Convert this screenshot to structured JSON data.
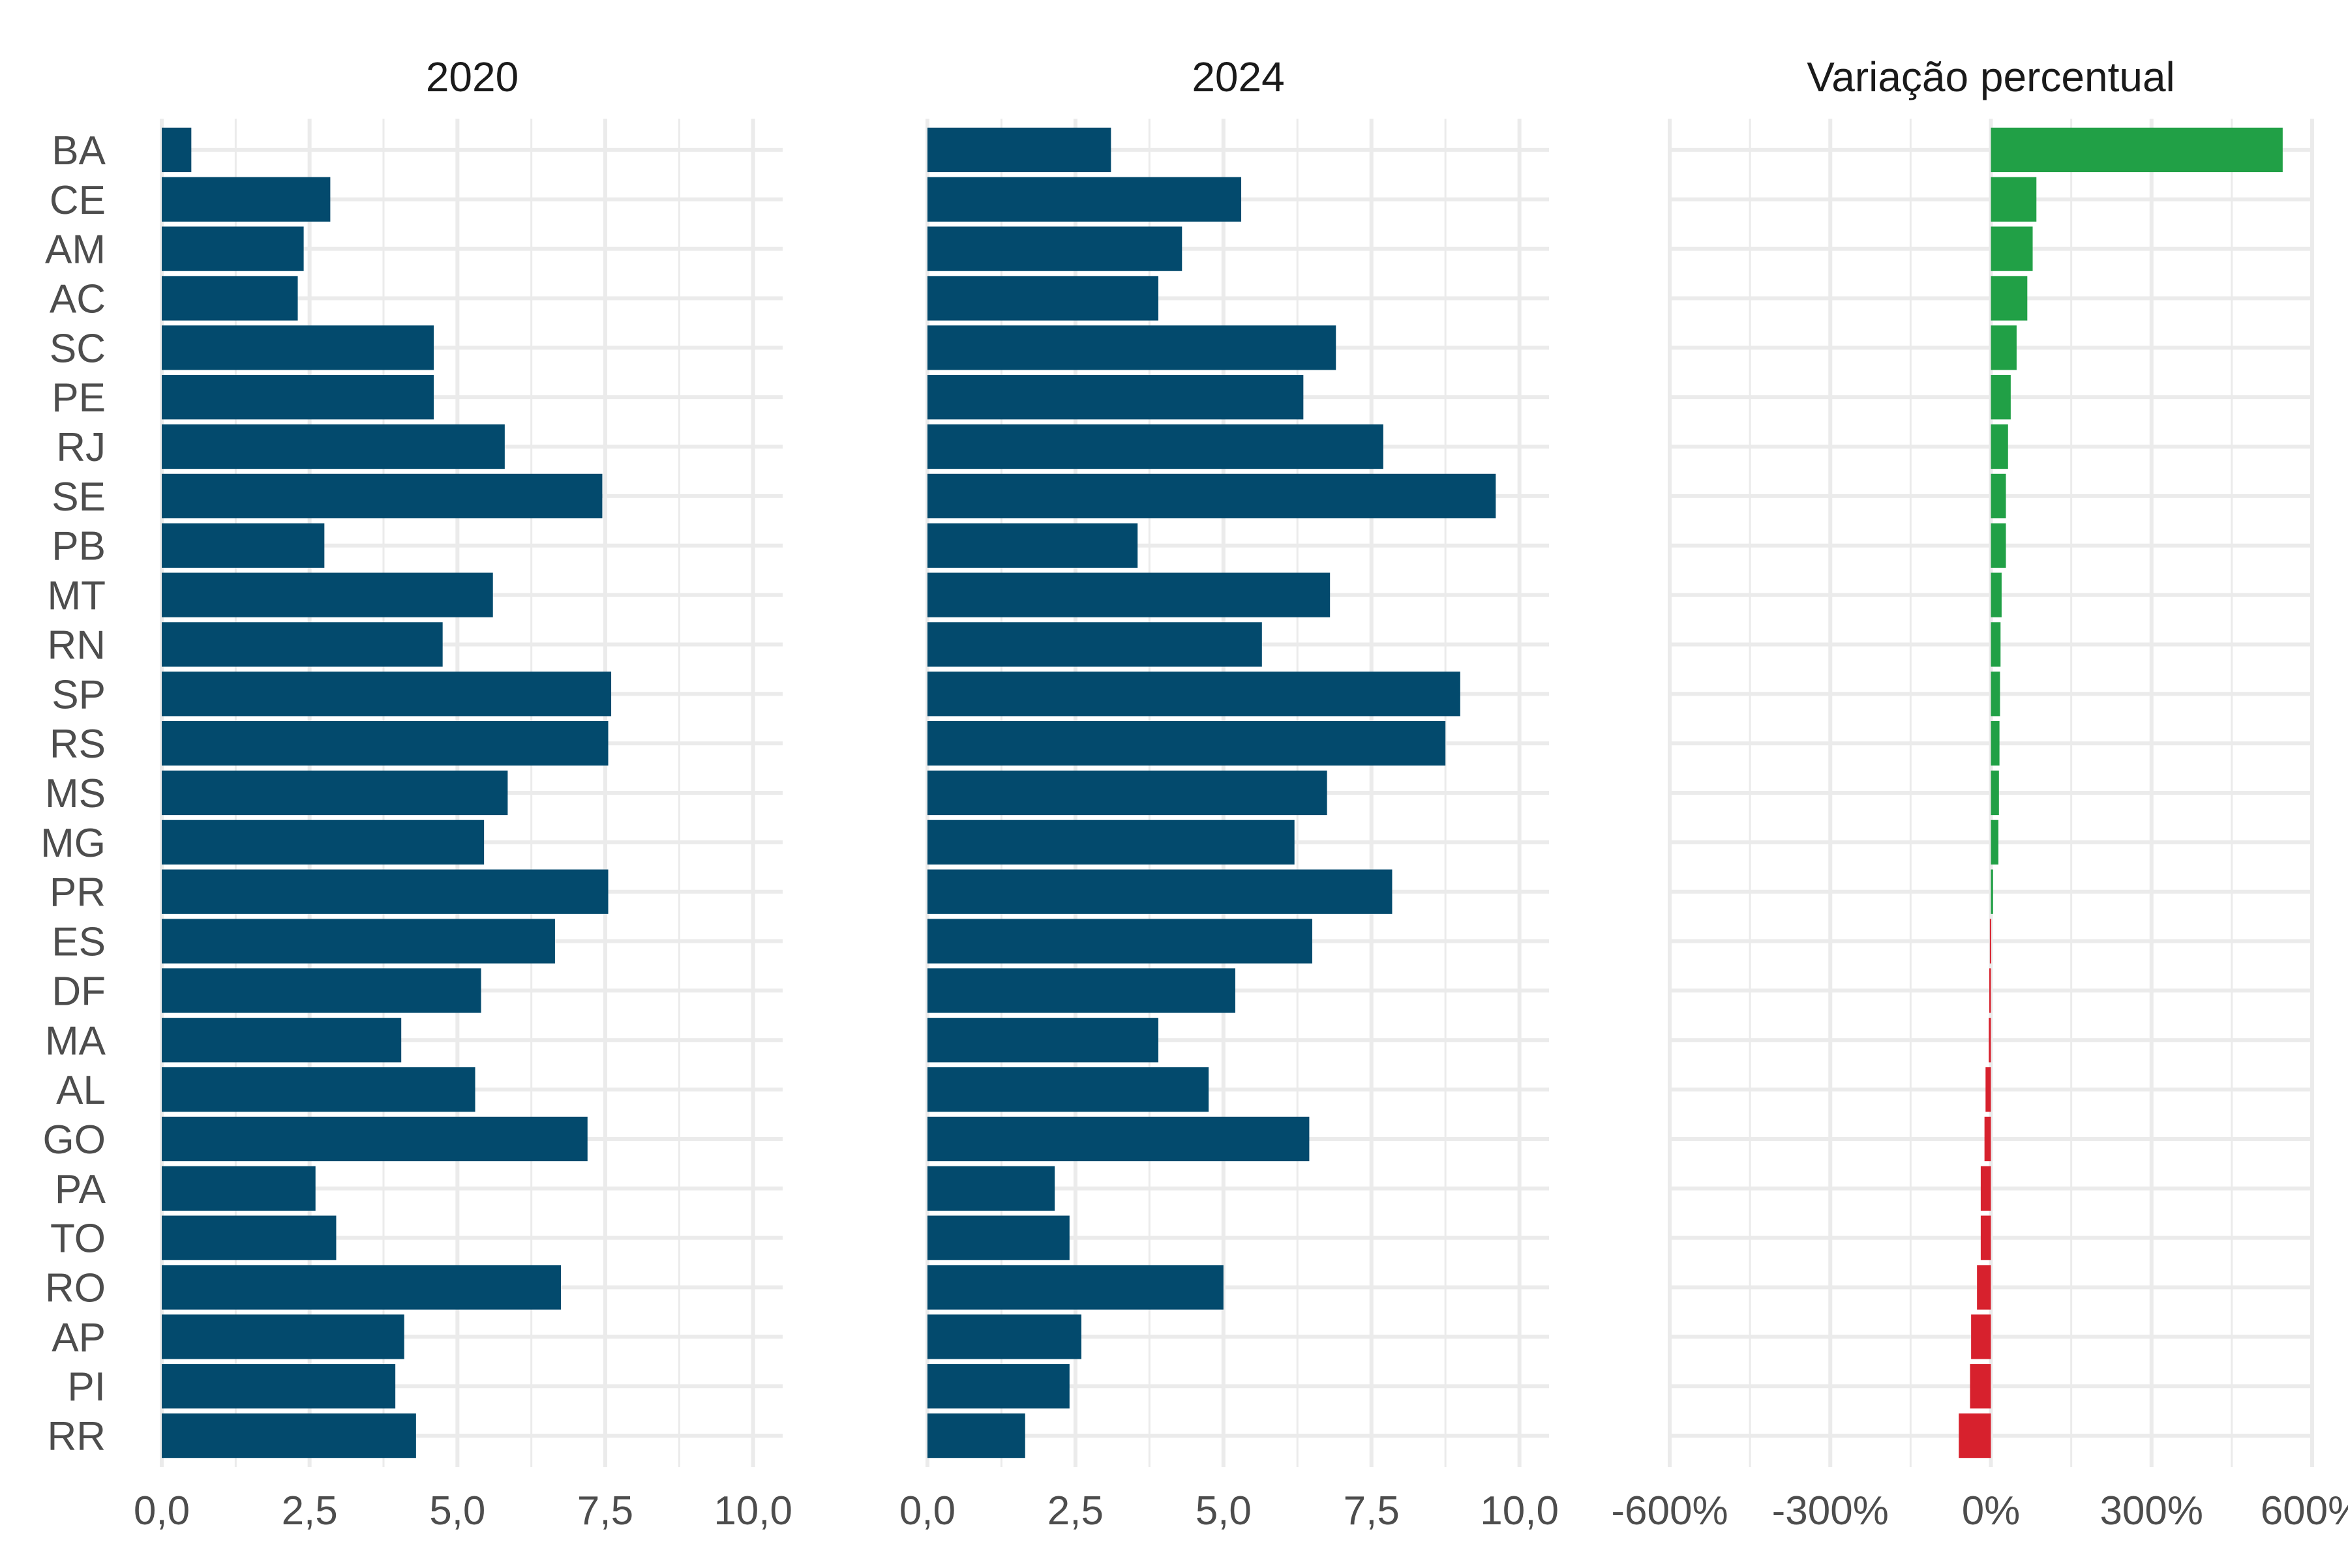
{
  "chart_data": {
    "type": "bar",
    "orientation": "horizontal",
    "categories": [
      "BA",
      "CE",
      "AM",
      "AC",
      "SC",
      "PE",
      "RJ",
      "SE",
      "PB",
      "MT",
      "RN",
      "SP",
      "RS",
      "MS",
      "MG",
      "PR",
      "ES",
      "DF",
      "MA",
      "AL",
      "GO",
      "PA",
      "TO",
      "RO",
      "AP",
      "PI",
      "RR"
    ],
    "grid": true,
    "panels": [
      {
        "title": "2020",
        "values": [
          0.5,
          2.85,
          2.4,
          2.3,
          4.6,
          4.6,
          5.8,
          7.45,
          2.75,
          5.6,
          4.75,
          7.6,
          7.55,
          5.85,
          5.45,
          7.55,
          6.65,
          5.4,
          4.05,
          5.3,
          7.2,
          2.6,
          2.95,
          6.75,
          4.1,
          3.95,
          4.3
        ],
        "xlim": [
          0,
          10.5
        ],
        "xticks": [
          "0,0",
          "2,5",
          "5,0",
          "7,5",
          "10,0"
        ],
        "xtick_values": [
          0,
          2.5,
          5,
          7.5,
          10
        ],
        "color": "#034a6d"
      },
      {
        "title": "2024",
        "values": [
          3.1,
          5.3,
          4.3,
          3.9,
          6.9,
          6.35,
          7.7,
          9.6,
          3.55,
          6.8,
          5.65,
          9.0,
          8.75,
          6.75,
          6.2,
          7.85,
          6.5,
          5.2,
          3.9,
          4.75,
          6.45,
          2.15,
          2.4,
          5.0,
          2.6,
          2.4,
          1.65
        ],
        "xlim": [
          0,
          10.5
        ],
        "xticks": [
          "0,0",
          "2,5",
          "5,0",
          "7,5",
          "10,0"
        ],
        "xtick_values": [
          0,
          2.5,
          5,
          7.5,
          10
        ],
        "color": "#034a6d"
      },
      {
        "title": "Variação percentual",
        "values": [
          545,
          85,
          78,
          68,
          48,
          37,
          32,
          28,
          28,
          20,
          18,
          17,
          16,
          15,
          14,
          4,
          -2,
          -3,
          -4,
          -10,
          -12,
          -19,
          -19,
          -26,
          -37,
          -39,
          -60
        ],
        "xlim": [
          -600,
          600
        ],
        "xticks": [
          "-600%",
          "-300%",
          "0%",
          "300%",
          "600%"
        ],
        "xtick_values": [
          -600,
          -300,
          0,
          300,
          600
        ],
        "positive_color": "#21a046",
        "negative_color": "#d7212d"
      }
    ]
  }
}
